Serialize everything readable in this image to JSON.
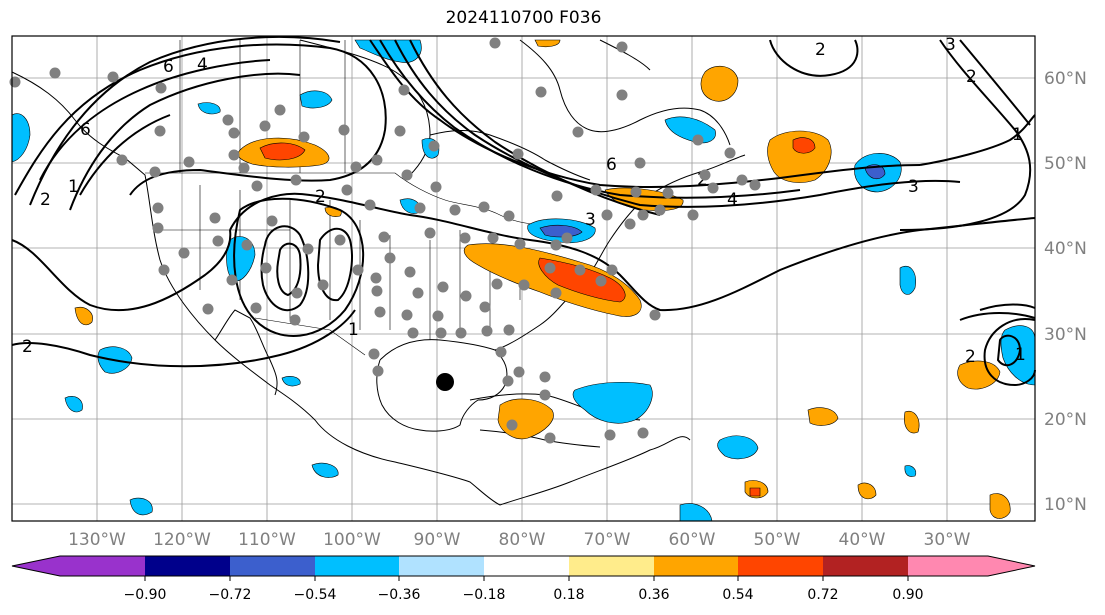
{
  "title": "2024110700 F036",
  "lon_labels": [
    "130°W",
    "120°W",
    "110°W",
    "100°W",
    "90°W",
    "80°W",
    "70°W",
    "60°W",
    "50°W",
    "40°W",
    "30°W"
  ],
  "lat_labels": [
    "60°N",
    "50°N",
    "40°N",
    "30°N",
    "20°N",
    "10°N"
  ],
  "colorbar": {
    "ticks": [
      "−0.90",
      "−0.72",
      "−0.54",
      "−0.36",
      "−0.18",
      "0.18",
      "0.36",
      "0.54",
      "0.72",
      "0.90"
    ],
    "colors": [
      "#9932cc",
      "#00008b",
      "#3c5fcd",
      "#00bfff",
      "#b0e2ff",
      "#ffffff",
      "#ffec8b",
      "#ffa500",
      "#ff4500",
      "#b22222",
      "#ff88b0"
    ]
  },
  "contour_labels": [
    "6",
    "4",
    "2",
    "1",
    "2",
    "6",
    "3",
    "4",
    "2",
    "2",
    "1",
    "3",
    "2",
    "1",
    "2",
    "1",
    "6",
    "3",
    "2"
  ]
}
